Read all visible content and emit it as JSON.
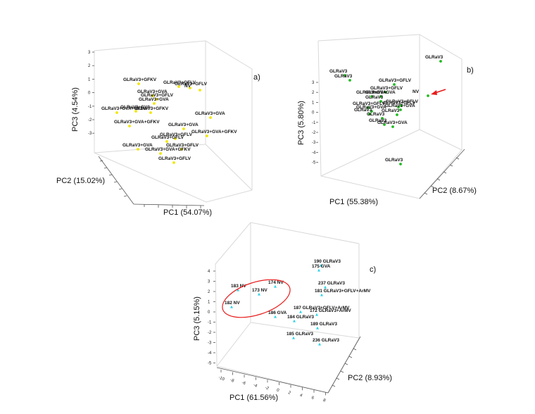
{
  "chart_data": [
    {
      "type": "scatter",
      "panel_label": "a)",
      "xlabel": "PC1 (54.07%)",
      "ylabel": "PC2 (15.02%)",
      "zlabel": "PC3 (4.54%)",
      "zticks": [
        "3",
        "2",
        "1",
        "0",
        "-1",
        "-2",
        "-3"
      ],
      "point_color": "#f2e600",
      "points": [
        {
          "label": "GLRaV3+GFKV",
          "sx": 197,
          "sy": 119
        },
        {
          "label": "GLRaV3+GFLV",
          "sx": 254,
          "sy": 123
        },
        {
          "label": "GLRaV3+GFLV",
          "sx": 270,
          "sy": 125
        },
        {
          "label": "NV",
          "sx": 284,
          "sy": 128
        },
        {
          "label": "GLRaV3+GVA",
          "sx": 217,
          "sy": 136
        },
        {
          "label": "GLRaV3+GFLV",
          "sx": 222,
          "sy": 141
        },
        {
          "label": "GLRaV3+GVA",
          "sx": 219,
          "sy": 147
        },
        {
          "label": "GLRaV3+GVA+GFLV",
          "sx": 166,
          "sy": 160
        },
        {
          "label": "GLRaV3+GVA",
          "sx": 193,
          "sy": 158
        },
        {
          "label": "GLRaV3+GFKV",
          "sx": 214,
          "sy": 160
        },
        {
          "label": "GLRaV3+GVA",
          "sx": 299,
          "sy": 167
        },
        {
          "label": "GLRaV3+GVA+GFKV",
          "sx": 184,
          "sy": 179
        },
        {
          "label": "GLRaV3+GVA",
          "sx": 261,
          "sy": 183
        },
        {
          "label": "GLRaV3+GVA+GFKV",
          "sx": 294,
          "sy": 193
        },
        {
          "label": "GLRaV3+GFLV",
          "sx": 249,
          "sy": 197
        },
        {
          "label": "GLRaV3+GFLV",
          "sx": 237,
          "sy": 201
        },
        {
          "label": "GLRaV3+GFLV",
          "sx": 258,
          "sy": 212
        },
        {
          "label": "GLRaV3+GVA",
          "sx": 196,
          "sy": 212
        },
        {
          "label": "GLRaV3+GVA+GFKV",
          "sx": 228,
          "sy": 218
        },
        {
          "label": "GLRaV3+GFLV",
          "sx": 247,
          "sy": 231
        }
      ]
    },
    {
      "type": "scatter",
      "panel_label": "b)",
      "xlabel": "PC1 (55.38%)",
      "ylabel": "PC2 (8.67%)",
      "zlabel": "PC3 (5.80%)",
      "zticks": [
        "3",
        "2",
        "1",
        "0",
        "-1",
        "-2",
        "-3",
        "-4",
        "-5"
      ],
      "point_color": "#22bb22",
      "points": [
        {
          "label": "GLRaV3",
          "sx": 626,
          "sy": 87
        },
        {
          "label": "GLRaV3",
          "sx": 490,
          "sy": 107
        },
        {
          "label": "GLRaV3",
          "sx": 497,
          "sy": 114
        },
        {
          "label": "GLRaV3+GFLV",
          "sx": 560,
          "sy": 120
        },
        {
          "label": "NV",
          "sx": 608,
          "sy": 136
        },
        {
          "label": "GLRaV3+GFLV",
          "sx": 548,
          "sy": 131
        },
        {
          "label": "GLRaV3+GVA",
          "sx": 528,
          "sy": 137
        },
        {
          "label": "GLRaV3+GVA",
          "sx": 541,
          "sy": 137
        },
        {
          "label": "GLRaV3",
          "sx": 541,
          "sy": 144
        },
        {
          "label": "GLRaV3+GFLV",
          "sx": 570,
          "sy": 150
        },
        {
          "label": "GLRaV3+GFLV",
          "sx": 566,
          "sy": 152
        },
        {
          "label": "GLRaV3+GFLV",
          "sx": 523,
          "sy": 153
        },
        {
          "label": "GLRaV3+GVA",
          "sx": 569,
          "sy": 156
        },
        {
          "label": "GLRaV3+GVA",
          "sx": 528,
          "sy": 158
        },
        {
          "label": "GLRaV3",
          "sx": 525,
          "sy": 162
        },
        {
          "label": "GLRaV3",
          "sx": 564,
          "sy": 163
        },
        {
          "label": "GLRaV3",
          "sx": 543,
          "sy": 168
        },
        {
          "label": "GLRaV3",
          "sx": 546,
          "sy": 177
        },
        {
          "label": "GLRaV3+GVA",
          "sx": 558,
          "sy": 180
        },
        {
          "label": "GLRaV3",
          "sx": 569,
          "sy": 233
        }
      ],
      "annotation": "red-arrow-to-NV"
    },
    {
      "type": "scatter",
      "panel_label": "c)",
      "xlabel": "PC1 (61.56%)",
      "ylabel": "PC2 (8.93%)",
      "zlabel": "PC3 (5.15%)",
      "zticks": [
        "4",
        "3",
        "2",
        "1",
        "0",
        "-1",
        "-2",
        "-3",
        "-4",
        "-5"
      ],
      "xticks": [
        "-10",
        "-8",
        "-6",
        "-4",
        "-2",
        "0",
        "2",
        "4",
        "6",
        "8"
      ],
      "point_color": "#2ed3e8",
      "points": [
        {
          "label": "190 GLRaV3",
          "sx": 456,
          "sy": 377
        },
        {
          "label": "175 GVA",
          "sx": 453,
          "sy": 384
        },
        {
          "label": "183 NV",
          "sx": 338,
          "sy": 412
        },
        {
          "label": "174 NV",
          "sx": 391,
          "sy": 407
        },
        {
          "label": "173 NV",
          "sx": 368,
          "sy": 418
        },
        {
          "label": "237 GLRaV3",
          "sx": 462,
          "sy": 408
        },
        {
          "label": "181 GLRaV3+GFLV+ArMV",
          "sx": 457,
          "sy": 419
        },
        {
          "label": "182 NV",
          "sx": 329,
          "sy": 436
        },
        {
          "label": "187 GLRaV3+GFLV+ArMV",
          "sx": 427,
          "sy": 443
        },
        {
          "label": "186 GVA",
          "sx": 391,
          "sy": 450
        },
        {
          "label": "172 GLRaV3+ArMV",
          "sx": 450,
          "sy": 447
        },
        {
          "label": "184 GLRaV3",
          "sx": 418,
          "sy": 456
        },
        {
          "label": "189 GLRaV3",
          "sx": 451,
          "sy": 466
        },
        {
          "label": "185 GLRaV3",
          "sx": 417,
          "sy": 480
        },
        {
          "label": "236 GLRaV3",
          "sx": 454,
          "sy": 489
        }
      ],
      "annotation": "red-ellipse-around-NV"
    }
  ]
}
